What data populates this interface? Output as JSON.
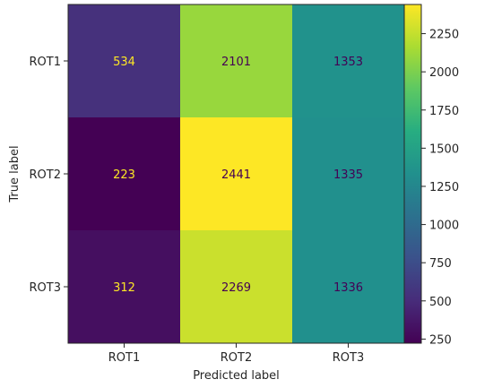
{
  "chart_data": {
    "type": "heatmap",
    "title": "",
    "xlabel": "Predicted label",
    "ylabel": "True label",
    "x_categories": [
      "ROT1",
      "ROT2",
      "ROT3"
    ],
    "y_categories": [
      "ROT1",
      "ROT2",
      "ROT3"
    ],
    "values": [
      [
        534,
        2101,
        1353
      ],
      [
        223,
        2441,
        1335
      ],
      [
        312,
        2269,
        1336
      ]
    ],
    "colormap": "viridis",
    "color_range": [
      223,
      2441
    ],
    "colorbar_ticks": [
      250,
      500,
      750,
      1000,
      1250,
      1500,
      1750,
      2000,
      2250
    ],
    "grid": false
  }
}
